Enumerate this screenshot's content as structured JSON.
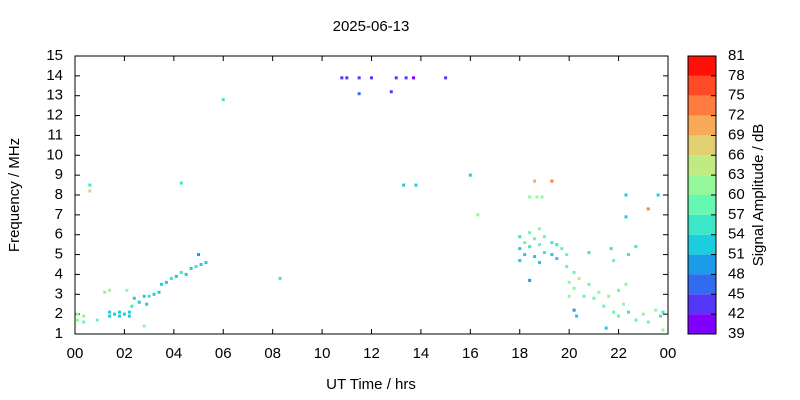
{
  "chart_data": {
    "type": "scatter",
    "title": "2025-06-13",
    "x_label": "UT Time / hrs",
    "y_label": "Frequency / MHz",
    "xlim": [
      0,
      24
    ],
    "xticks": [
      {
        "value": 0,
        "label": "00"
      },
      {
        "value": 2,
        "label": "02"
      },
      {
        "value": 4,
        "label": "04"
      },
      {
        "value": 6,
        "label": "06"
      },
      {
        "value": 8,
        "label": "08"
      },
      10,
      12,
      14,
      16,
      18,
      20,
      22,
      {
        "value": 24,
        "label": "00"
      }
    ],
    "ylim": [
      1,
      15
    ],
    "yticks": [
      1,
      2,
      3,
      4,
      5,
      6,
      7,
      8,
      9,
      10,
      11,
      12,
      13,
      14,
      15
    ],
    "colorbar": {
      "label": "Signal Amplitude / dB",
      "ticks": [
        39,
        42,
        45,
        48,
        51,
        54,
        57,
        60,
        63,
        66,
        69,
        72,
        75,
        78,
        81
      ],
      "colors": [
        "#7f00ff",
        "#5535f8",
        "#336af2",
        "#1c9ce8",
        "#1ccde0",
        "#3ae8c8",
        "#66f8b0",
        "#94f89a",
        "#c0ea84",
        "#e2d070",
        "#f8aa58",
        "#ff7c40",
        "#ff4a26",
        "#ff0f08"
      ]
    },
    "x": [
      0.1,
      0.1,
      0.35,
      0.35,
      0.6,
      0.6,
      0.9,
      1.2,
      1.4,
      1.4,
      1.4,
      1.6,
      1.8,
      1.8,
      2.0,
      2.1,
      2.2,
      2.2,
      2.3,
      2.4,
      2.6,
      2.8,
      2.8,
      2.9,
      3.0,
      3.2,
      3.4,
      3.5,
      3.7,
      3.9,
      4.1,
      4.3,
      4.3,
      4.5,
      4.7,
      4.9,
      5.0,
      5.1,
      5.3,
      6.0,
      8.3,
      10.8,
      11.0,
      11.5,
      11.5,
      12.0,
      12.8,
      13.0,
      13.4,
      13.7,
      15.0,
      13.3,
      13.8,
      16.0,
      16.3,
      18.4,
      18.6,
      18.7,
      18.9,
      19.3,
      18.0,
      18.0,
      18.0,
      18.2,
      18.2,
      18.4,
      18.4,
      18.4,
      18.6,
      18.6,
      18.8,
      18.8,
      18.8,
      19.0,
      19.0,
      19.3,
      19.3,
      19.5,
      19.5,
      19.7,
      19.9,
      19.9,
      20.0,
      20.0,
      20.2,
      20.2,
      20.2,
      20.3,
      20.4,
      20.6,
      20.8,
      20.8,
      21.0,
      21.2,
      21.4,
      21.5,
      21.6,
      21.7,
      21.8,
      22.0,
      22.0,
      22.2,
      22.3,
      22.3,
      22.4,
      22.4,
      22.7,
      22.7,
      23.0,
      23.2,
      23.2,
      23.5,
      23.6,
      23.7,
      23.8,
      23.8,
      21.8,
      22.3
    ],
    "y": [
      2.0,
      1.7,
      1.9,
      1.6,
      8.5,
      8.2,
      1.7,
      3.1,
      3.2,
      1.9,
      2.1,
      2.0,
      1.9,
      2.1,
      2.0,
      3.2,
      2.1,
      1.9,
      2.4,
      2.8,
      2.6,
      2.9,
      1.4,
      2.5,
      2.9,
      3.0,
      3.1,
      3.5,
      3.6,
      3.8,
      3.9,
      4.1,
      8.6,
      4.0,
      4.3,
      4.4,
      5.0,
      4.5,
      4.6,
      12.8,
      3.8,
      13.9,
      13.9,
      13.9,
      13.1,
      13.9,
      13.2,
      13.9,
      13.9,
      13.9,
      13.9,
      8.5,
      8.5,
      9.0,
      7.0,
      7.9,
      8.7,
      7.9,
      7.9,
      8.7,
      5.9,
      5.3,
      4.7,
      5.6,
      5.0,
      3.7,
      6.1,
      5.4,
      5.8,
      4.9,
      6.3,
      5.5,
      4.6,
      5.9,
      5.1,
      5.6,
      5.0,
      5.5,
      4.8,
      5.3,
      5.0,
      4.4,
      3.6,
      2.9,
      4.1,
      3.3,
      2.2,
      1.9,
      3.8,
      2.9,
      5.1,
      3.5,
      2.8,
      3.1,
      2.4,
      1.3,
      2.9,
      5.3,
      2.1,
      3.2,
      1.9,
      2.5,
      8.0,
      6.9,
      5.0,
      2.1,
      5.4,
      1.7,
      2.0,
      7.3,
      1.6,
      2.2,
      8.0,
      1.9,
      1.2,
      2.1,
      4.7,
      3.5
    ],
    "values": [
      60,
      60,
      60,
      57,
      54,
      66,
      57,
      60,
      60,
      51,
      51,
      51,
      51,
      51,
      51,
      60,
      51,
      51,
      54,
      51,
      51,
      51,
      60,
      51,
      54,
      51,
      51,
      51,
      51,
      54,
      51,
      54,
      54,
      51,
      51,
      54,
      48,
      51,
      51,
      54,
      54,
      42,
      42,
      42,
      45,
      42,
      42,
      42,
      42,
      39,
      42,
      51,
      51,
      51,
      60,
      60,
      69,
      60,
      60,
      72,
      54,
      51,
      51,
      57,
      51,
      48,
      57,
      54,
      57,
      51,
      60,
      57,
      51,
      57,
      54,
      54,
      51,
      54,
      51,
      57,
      57,
      57,
      60,
      60,
      57,
      60,
      48,
      51,
      63,
      57,
      54,
      57,
      57,
      60,
      57,
      51,
      60,
      54,
      57,
      57,
      57,
      60,
      51,
      51,
      54,
      54,
      54,
      57,
      60,
      72,
      57,
      60,
      51,
      54,
      60,
      54,
      57,
      60
    ]
  }
}
